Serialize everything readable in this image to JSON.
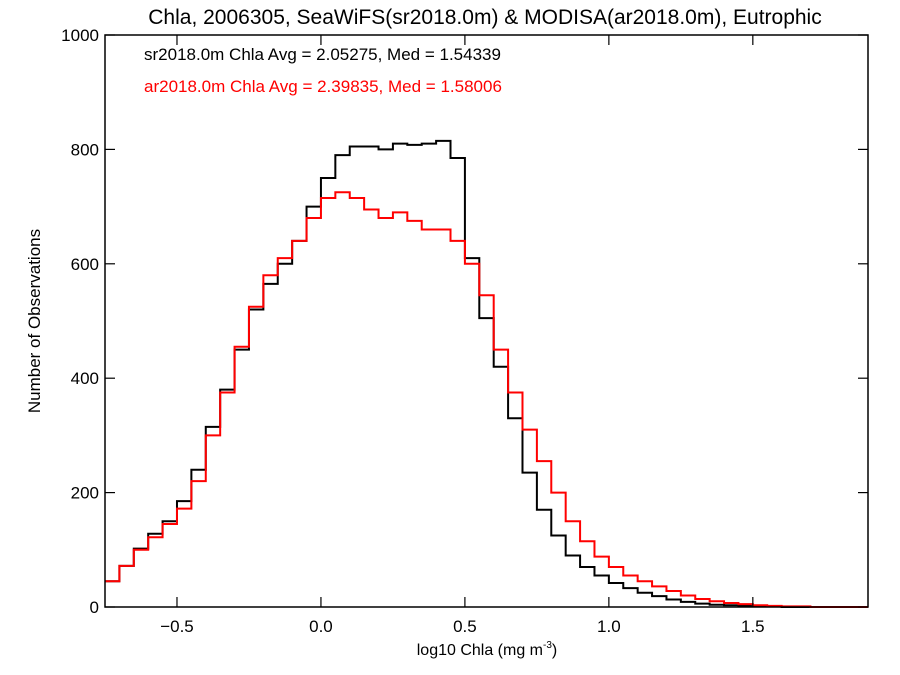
{
  "chart_data": {
    "type": "line",
    "title": "Chla, 2006305, SeaWiFS(sr2018.0m) & MODISA(ar2018.0m), Eutrophic",
    "xlabel_main": "log10 Chla (mg m",
    "xlabel_sup": "-3",
    "xlabel_close": ")",
    "ylabel": "Number of Observations",
    "xlim": [
      -0.75,
      1.9
    ],
    "ylim": [
      0,
      1000
    ],
    "x_ticks": [
      -0.5,
      0.0,
      0.5,
      1.0,
      1.5
    ],
    "x_tick_labels": [
      "−0.5",
      "0.0",
      "0.5",
      "1.0",
      "1.5"
    ],
    "y_ticks": [
      0,
      200,
      400,
      600,
      800,
      1000
    ],
    "y_tick_labels": [
      "0",
      "200",
      "400",
      "600",
      "800",
      "1000"
    ],
    "step": "histogram",
    "annotations": [
      {
        "text": "sr2018.0m Chla Avg = 2.05275, Med = 1.54339",
        "color": "#000000"
      },
      {
        "text": "ar2018.0m Chla Avg = 2.39835, Med = 1.58006",
        "color": "#ff0000"
      }
    ],
    "series": [
      {
        "color": "#000000",
        "x": [
          -0.75,
          -0.7,
          -0.65,
          -0.6,
          -0.55,
          -0.5,
          -0.45,
          -0.4,
          -0.35,
          -0.3,
          -0.25,
          -0.2,
          -0.15,
          -0.1,
          -0.05,
          0.0,
          0.05,
          0.1,
          0.15,
          0.2,
          0.25,
          0.3,
          0.35,
          0.4,
          0.45,
          0.5,
          0.55,
          0.6,
          0.65,
          0.7,
          0.75,
          0.8,
          0.85,
          0.9,
          0.95,
          1.0,
          1.05,
          1.1,
          1.15,
          1.2,
          1.25,
          1.3,
          1.35,
          1.4,
          1.45,
          1.5,
          1.55,
          1.6,
          1.65,
          1.7,
          1.75,
          1.8,
          1.85,
          1.9
        ],
        "y": [
          45,
          72,
          102,
          128,
          150,
          185,
          240,
          315,
          380,
          450,
          520,
          565,
          600,
          640,
          700,
          750,
          790,
          805,
          805,
          800,
          810,
          808,
          810,
          815,
          785,
          610,
          505,
          420,
          330,
          235,
          170,
          125,
          90,
          70,
          55,
          42,
          33,
          25,
          19,
          13,
          9,
          6,
          4,
          3,
          2,
          1,
          1,
          0,
          0,
          0,
          0,
          0,
          0,
          0
        ]
      },
      {
        "color": "#ff0000",
        "x": [
          -0.75,
          -0.7,
          -0.65,
          -0.6,
          -0.55,
          -0.5,
          -0.45,
          -0.4,
          -0.35,
          -0.3,
          -0.25,
          -0.2,
          -0.15,
          -0.1,
          -0.05,
          0.0,
          0.05,
          0.1,
          0.15,
          0.2,
          0.25,
          0.3,
          0.35,
          0.4,
          0.45,
          0.5,
          0.55,
          0.6,
          0.65,
          0.7,
          0.75,
          0.8,
          0.85,
          0.9,
          0.95,
          1.0,
          1.05,
          1.1,
          1.15,
          1.2,
          1.25,
          1.3,
          1.35,
          1.4,
          1.45,
          1.5,
          1.55,
          1.6,
          1.65,
          1.7,
          1.75,
          1.8,
          1.85,
          1.9
        ],
        "y": [
          45,
          72,
          100,
          122,
          145,
          172,
          220,
          300,
          375,
          455,
          525,
          580,
          610,
          640,
          680,
          715,
          725,
          715,
          695,
          680,
          690,
          675,
          660,
          660,
          640,
          600,
          545,
          450,
          375,
          310,
          255,
          200,
          150,
          115,
          88,
          70,
          55,
          45,
          36,
          28,
          20,
          14,
          10,
          7,
          5,
          3,
          2,
          1,
          1,
          0,
          0,
          0,
          0,
          0
        ]
      }
    ]
  }
}
